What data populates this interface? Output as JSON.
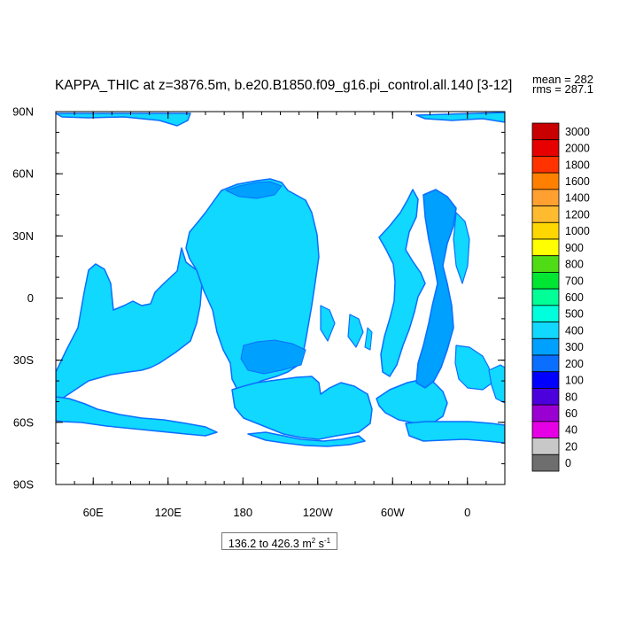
{
  "chart_data": {
    "type": "heatmap",
    "title": "KAPPA_THIC at z=3876.5m, b.e20.B1850.f09_g16.pi_control.all.140 [3-12]",
    "stats": {
      "mean": "mean = 282",
      "rms": "rms = 287.1"
    },
    "x_axis": {
      "type": "longitude",
      "range_deg_east": [
        30,
        390
      ],
      "tick_labels": [
        {
          "lon": 60,
          "label": "60E"
        },
        {
          "lon": 120,
          "label": "120E"
        },
        {
          "lon": 180,
          "label": "180"
        },
        {
          "lon": 240,
          "label": "120W"
        },
        {
          "lon": 300,
          "label": "60W"
        },
        {
          "lon": 360,
          "label": "0"
        }
      ],
      "minor_step_deg": 15
    },
    "y_axis": {
      "type": "latitude",
      "range_deg": [
        -90,
        90
      ],
      "tick_labels": [
        {
          "lat": 90,
          "label": "90N"
        },
        {
          "lat": 60,
          "label": "60N"
        },
        {
          "lat": 30,
          "label": "30N"
        },
        {
          "lat": 0,
          "label": "0"
        },
        {
          "lat": -30,
          "label": "30S"
        },
        {
          "lat": -60,
          "label": "60S"
        },
        {
          "lat": -90,
          "label": "90S"
        }
      ],
      "minor_step_deg": 10
    },
    "colorbar": {
      "levels": [
        "0",
        "20",
        "40",
        "60",
        "80",
        "100",
        "200",
        "300",
        "400",
        "500",
        "600",
        "700",
        "800",
        "900",
        "1000",
        "1200",
        "1400",
        "1600",
        "1800",
        "2000",
        "3000"
      ],
      "colors": [
        "#6e6e6e",
        "#c8c8c8",
        "#e600e6",
        "#9b00d2",
        "#4b00dc",
        "#0000ff",
        "#0a6eff",
        "#00a0ff",
        "#10d8ff",
        "#00ffdc",
        "#00ff96",
        "#00e632",
        "#50dc14",
        "#ffff00",
        "#ffd700",
        "#ffbb30",
        "#ffa030",
        "#ff8000",
        "#ff3200",
        "#e60000",
        "#c80000"
      ]
    },
    "field": {
      "dominant_fill": "#10d8ff",
      "secondary_fill": "#00a0ff",
      "edge_fill": "#0a6eff",
      "land_mask": "#ffffff"
    },
    "range_label": {
      "prefix": "136.2 to 426.3 m",
      "exp1": "2",
      "mid": " s",
      "exp2": "-1"
    }
  }
}
